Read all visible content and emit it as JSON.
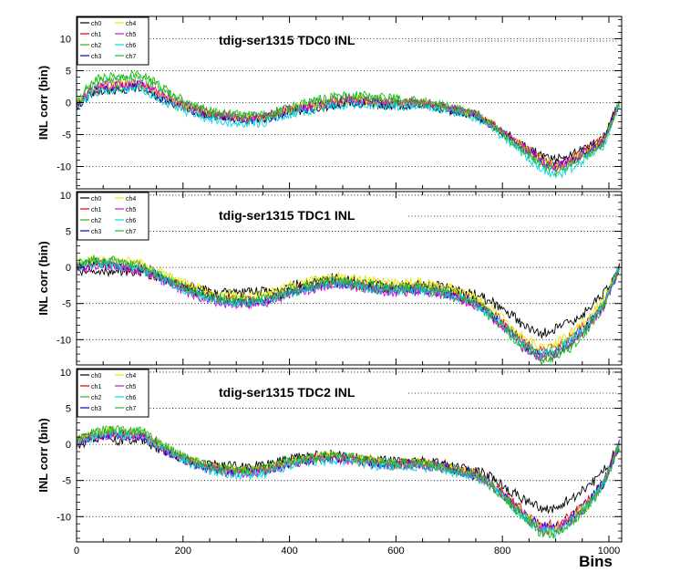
{
  "chart_data": [
    {
      "type": "line",
      "title": "tdig-ser1315 TDC0 INL",
      "ylabel": "INL corr (bin)",
      "xlabel": "",
      "xlim": [
        0,
        1024
      ],
      "ylim": [
        -13.5,
        13.5
      ],
      "x_ticks": [
        0,
        200,
        400,
        600,
        800,
        1000
      ],
      "y_ticks": [
        -10,
        -5,
        0,
        5,
        10
      ],
      "grid": "horizontal dotted",
      "legend": "top-left",
      "x": [
        0,
        30,
        60,
        90,
        120,
        160,
        200,
        240,
        280,
        320,
        360,
        400,
        440,
        480,
        520,
        560,
        600,
        640,
        680,
        720,
        750,
        780,
        810,
        840,
        870,
        900,
        930,
        960,
        990,
        1020
      ],
      "series": [
        {
          "name": "ch0",
          "color": "#000000",
          "values": [
            -0.5,
            1.5,
            2.0,
            2.0,
            2.5,
            0.5,
            -0.8,
            -1.8,
            -2.2,
            -2.6,
            -2.3,
            -1.5,
            -1.0,
            -0.5,
            0.0,
            -0.3,
            -0.5,
            -0.3,
            -0.8,
            -1.5,
            -2.0,
            -3.5,
            -5.0,
            -6.5,
            -8.0,
            -9.0,
            -8.0,
            -7.0,
            -5.5,
            0.0
          ]
        },
        {
          "name": "ch1",
          "color": "#e00000",
          "values": [
            -0.3,
            2.0,
            2.5,
            2.6,
            3.0,
            1.0,
            -0.5,
            -1.6,
            -2.1,
            -2.5,
            -2.2,
            -1.2,
            -0.6,
            0.0,
            0.3,
            0.1,
            -0.2,
            0.0,
            -0.5,
            -1.3,
            -1.9,
            -3.3,
            -5.0,
            -6.8,
            -8.6,
            -9.8,
            -8.8,
            -7.3,
            -5.8,
            0.0
          ]
        },
        {
          "name": "ch2",
          "color": "#10c010",
          "values": [
            0.0,
            3.5,
            4.0,
            4.2,
            4.5,
            2.5,
            0.3,
            -1.0,
            -1.7,
            -2.0,
            -1.9,
            -0.7,
            0.2,
            0.8,
            1.2,
            0.9,
            0.6,
            0.4,
            -0.3,
            -1.0,
            -1.7,
            -3.3,
            -5.4,
            -7.4,
            -9.3,
            -10.4,
            -9.3,
            -7.8,
            -6.2,
            0.0
          ]
        },
        {
          "name": "ch3",
          "color": "#0000d0",
          "values": [
            -0.5,
            1.8,
            2.4,
            2.5,
            2.8,
            0.8,
            -0.7,
            -1.8,
            -2.4,
            -2.8,
            -2.5,
            -1.4,
            -0.8,
            -0.2,
            0.2,
            0.0,
            -0.3,
            -0.1,
            -0.6,
            -1.4,
            -2.1,
            -3.5,
            -5.3,
            -7.0,
            -8.8,
            -10.0,
            -9.0,
            -7.5,
            -6.0,
            0.0
          ]
        },
        {
          "name": "ch4",
          "color": "#e8e800",
          "values": [
            -0.4,
            2.2,
            2.7,
            2.8,
            3.1,
            1.2,
            -0.4,
            -1.5,
            -2.1,
            -2.5,
            -2.2,
            -1.1,
            -0.5,
            0.1,
            0.4,
            0.2,
            -0.1,
            0.1,
            -0.4,
            -1.2,
            -1.9,
            -3.4,
            -5.2,
            -7.0,
            -8.8,
            -10.0,
            -9.0,
            -7.5,
            -6.0,
            0.0
          ]
        },
        {
          "name": "ch5",
          "color": "#e000e0",
          "values": [
            -0.4,
            2.3,
            2.8,
            2.9,
            3.2,
            1.3,
            -0.3,
            -1.5,
            -2.1,
            -2.4,
            -2.1,
            -1.0,
            -0.4,
            0.2,
            0.5,
            0.3,
            0.0,
            0.2,
            -0.3,
            -1.1,
            -1.8,
            -3.4,
            -5.3,
            -7.1,
            -9.0,
            -10.2,
            -9.1,
            -7.6,
            -6.1,
            0.0
          ]
        },
        {
          "name": "ch6",
          "color": "#00d8e0",
          "values": [
            -0.8,
            1.5,
            2.0,
            2.1,
            2.4,
            0.3,
            -1.2,
            -2.4,
            -3.0,
            -3.4,
            -3.0,
            -1.8,
            -1.2,
            -0.6,
            -0.2,
            -0.4,
            -0.6,
            -0.4,
            -0.9,
            -1.7,
            -2.4,
            -3.9,
            -6.0,
            -8.0,
            -10.2,
            -11.5,
            -10.3,
            -8.5,
            -6.8,
            0.0
          ]
        },
        {
          "name": "ch7",
          "color": "#30b030",
          "values": [
            -0.2,
            3.0,
            3.6,
            3.8,
            4.0,
            2.0,
            0.0,
            -1.2,
            -1.9,
            -2.2,
            -2.0,
            -0.8,
            0.0,
            0.6,
            1.0,
            0.7,
            0.4,
            0.3,
            -0.3,
            -1.1,
            -1.8,
            -3.4,
            -5.5,
            -7.5,
            -9.5,
            -10.8,
            -9.6,
            -8.0,
            -6.4,
            0.0
          ]
        }
      ]
    },
    {
      "type": "line",
      "title": "tdig-ser1315 TDC1 INL",
      "ylabel": "INL corr (bin)",
      "xlabel": "",
      "xlim": [
        0,
        1024
      ],
      "ylim": [
        -13.5,
        10.5
      ],
      "x_ticks": [
        0,
        200,
        400,
        600,
        800,
        1000
      ],
      "y_ticks": [
        -10,
        -5,
        0,
        5,
        10
      ],
      "grid": "horizontal dotted",
      "legend": "top-left",
      "x": [
        0,
        30,
        60,
        90,
        120,
        160,
        200,
        240,
        280,
        320,
        360,
        400,
        440,
        480,
        520,
        560,
        600,
        640,
        680,
        720,
        750,
        780,
        810,
        840,
        870,
        900,
        930,
        960,
        990,
        1020
      ],
      "series": [
        {
          "name": "ch0",
          "color": "#000000",
          "values": [
            -0.5,
            -0.3,
            -0.8,
            -0.5,
            -0.5,
            -1.5,
            -2.5,
            -3.2,
            -3.6,
            -3.5,
            -3.3,
            -2.6,
            -2.0,
            -1.5,
            -1.8,
            -2.3,
            -2.5,
            -2.4,
            -2.6,
            -3.3,
            -3.8,
            -4.8,
            -6.2,
            -8.0,
            -9.3,
            -8.5,
            -7.5,
            -6.0,
            -3.5,
            0.0
          ]
        },
        {
          "name": "ch1",
          "color": "#e00000",
          "values": [
            0.0,
            0.5,
            0.5,
            0.0,
            -0.2,
            -1.5,
            -2.8,
            -3.8,
            -4.5,
            -4.6,
            -4.3,
            -3.2,
            -2.6,
            -2.0,
            -2.2,
            -2.8,
            -3.0,
            -2.9,
            -3.2,
            -4.0,
            -4.8,
            -6.3,
            -8.2,
            -10.3,
            -11.6,
            -11.0,
            -9.5,
            -7.5,
            -5.0,
            0.0
          ]
        },
        {
          "name": "ch2",
          "color": "#10c010",
          "values": [
            0.2,
            0.8,
            0.8,
            0.4,
            0.0,
            -1.3,
            -2.8,
            -4.0,
            -4.8,
            -4.9,
            -4.6,
            -3.5,
            -2.8,
            -2.2,
            -2.5,
            -3.0,
            -3.2,
            -3.1,
            -3.5,
            -4.3,
            -5.2,
            -7.0,
            -9.0,
            -11.3,
            -12.8,
            -12.5,
            -11.0,
            -8.5,
            -5.5,
            0.0
          ]
        },
        {
          "name": "ch3",
          "color": "#0000d0",
          "values": [
            0.1,
            0.6,
            0.6,
            0.2,
            -0.1,
            -1.4,
            -2.8,
            -3.9,
            -4.6,
            -4.7,
            -4.4,
            -3.3,
            -2.7,
            -2.1,
            -2.3,
            -2.9,
            -3.1,
            -3.0,
            -3.3,
            -4.1,
            -5.0,
            -6.6,
            -8.6,
            -10.8,
            -12.2,
            -11.8,
            -10.2,
            -8.0,
            -5.2,
            0.0
          ]
        },
        {
          "name": "ch4",
          "color": "#e8e800",
          "values": [
            0.5,
            1.2,
            1.3,
            0.8,
            0.5,
            -0.8,
            -2.2,
            -3.2,
            -3.8,
            -3.9,
            -3.6,
            -2.5,
            -1.8,
            -1.2,
            -1.5,
            -2.0,
            -2.2,
            -2.1,
            -2.5,
            -3.3,
            -4.2,
            -5.8,
            -7.7,
            -9.8,
            -11.0,
            -10.5,
            -9.0,
            -7.0,
            -4.5,
            0.0
          ]
        },
        {
          "name": "ch5",
          "color": "#e000e0",
          "values": [
            -0.2,
            0.2,
            0.2,
            -0.2,
            -0.5,
            -1.8,
            -3.2,
            -4.3,
            -5.0,
            -5.1,
            -4.8,
            -3.7,
            -3.0,
            -2.4,
            -2.6,
            -3.2,
            -3.4,
            -3.3,
            -3.6,
            -4.4,
            -5.3,
            -6.9,
            -8.8,
            -11.0,
            -12.4,
            -12.0,
            -10.5,
            -8.2,
            -5.4,
            0.0
          ]
        },
        {
          "name": "ch6",
          "color": "#00d8e0",
          "values": [
            0.0,
            0.4,
            0.4,
            0.0,
            -0.3,
            -1.6,
            -3.0,
            -4.1,
            -4.8,
            -4.9,
            -4.6,
            -3.5,
            -2.8,
            -2.2,
            -2.4,
            -3.0,
            -3.2,
            -3.1,
            -3.4,
            -4.2,
            -5.1,
            -6.7,
            -8.6,
            -10.6,
            -11.9,
            -11.4,
            -9.9,
            -7.8,
            -5.1,
            0.0
          ]
        },
        {
          "name": "ch7",
          "color": "#30b030",
          "values": [
            0.3,
            0.9,
            1.0,
            0.5,
            0.2,
            -1.1,
            -2.6,
            -3.7,
            -4.4,
            -4.5,
            -4.2,
            -3.1,
            -2.4,
            -1.8,
            -2.1,
            -2.6,
            -2.8,
            -2.7,
            -3.1,
            -3.9,
            -4.8,
            -6.5,
            -8.5,
            -10.8,
            -12.3,
            -12.0,
            -10.5,
            -8.1,
            -5.2,
            0.0
          ]
        }
      ]
    },
    {
      "type": "line",
      "title": "tdig-ser1315 TDC2 INL",
      "ylabel": "INL corr (bin)",
      "xlabel": "Bins",
      "xlim": [
        0,
        1024
      ],
      "ylim": [
        -13.5,
        10.5
      ],
      "x_ticks": [
        0,
        200,
        400,
        600,
        800,
        1000
      ],
      "y_ticks": [
        -10,
        -5,
        0,
        5,
        10
      ],
      "grid": "horizontal dotted",
      "legend": "top-left",
      "x": [
        0,
        30,
        60,
        90,
        120,
        160,
        200,
        240,
        280,
        320,
        360,
        400,
        440,
        480,
        520,
        560,
        600,
        640,
        680,
        720,
        750,
        780,
        810,
        840,
        870,
        900,
        930,
        960,
        990,
        1020
      ],
      "series": [
        {
          "name": "ch0",
          "color": "#000000",
          "values": [
            0.0,
            0.6,
            0.8,
            0.5,
            0.8,
            -0.8,
            -2.0,
            -2.7,
            -3.0,
            -3.1,
            -2.8,
            -2.0,
            -1.6,
            -1.4,
            -1.8,
            -2.2,
            -2.4,
            -2.3,
            -2.6,
            -3.2,
            -3.6,
            -4.6,
            -6.2,
            -7.6,
            -8.8,
            -8.8,
            -7.5,
            -6.0,
            -3.8,
            0.0
          ]
        },
        {
          "name": "ch1",
          "color": "#e00000",
          "values": [
            0.4,
            1.2,
            1.6,
            1.3,
            1.5,
            -0.4,
            -2.0,
            -3.0,
            -3.5,
            -3.7,
            -3.4,
            -2.5,
            -2.0,
            -1.7,
            -2.0,
            -2.5,
            -2.7,
            -2.6,
            -2.9,
            -3.6,
            -4.1,
            -5.4,
            -7.3,
            -9.3,
            -11.0,
            -11.3,
            -9.8,
            -7.9,
            -5.2,
            0.0
          ]
        },
        {
          "name": "ch2",
          "color": "#10c010",
          "values": [
            0.6,
            1.5,
            1.9,
            1.6,
            1.8,
            -0.2,
            -1.8,
            -2.9,
            -3.5,
            -3.7,
            -3.3,
            -2.4,
            -1.9,
            -1.6,
            -1.9,
            -2.4,
            -2.7,
            -2.6,
            -3.0,
            -3.8,
            -4.3,
            -5.8,
            -7.9,
            -10.1,
            -12.0,
            -12.3,
            -10.7,
            -8.6,
            -5.6,
            0.0
          ]
        },
        {
          "name": "ch3",
          "color": "#0000d0",
          "values": [
            0.3,
            1.0,
            1.4,
            1.1,
            1.3,
            -0.6,
            -2.2,
            -3.1,
            -3.7,
            -3.9,
            -3.5,
            -2.6,
            -2.1,
            -1.8,
            -2.1,
            -2.6,
            -2.8,
            -2.7,
            -3.0,
            -3.7,
            -4.2,
            -5.5,
            -7.5,
            -9.6,
            -11.3,
            -11.6,
            -10.1,
            -8.1,
            -5.3,
            0.0
          ]
        },
        {
          "name": "ch4",
          "color": "#e8e800",
          "values": [
            0.5,
            1.3,
            1.7,
            1.4,
            1.6,
            -0.3,
            -1.9,
            -2.9,
            -3.5,
            -3.7,
            -3.3,
            -2.4,
            -1.9,
            -1.6,
            -1.9,
            -2.4,
            -2.7,
            -2.6,
            -2.9,
            -3.7,
            -4.2,
            -5.6,
            -7.6,
            -9.7,
            -11.5,
            -11.8,
            -10.3,
            -8.3,
            -5.4,
            0.0
          ]
        },
        {
          "name": "ch5",
          "color": "#e000e0",
          "values": [
            0.2,
            1.0,
            1.4,
            1.1,
            1.3,
            -0.6,
            -2.2,
            -3.2,
            -3.8,
            -4.0,
            -3.6,
            -2.7,
            -2.2,
            -1.9,
            -2.2,
            -2.7,
            -2.9,
            -2.8,
            -3.1,
            -3.8,
            -4.3,
            -5.7,
            -7.7,
            -9.8,
            -11.6,
            -12.0,
            -10.4,
            -8.4,
            -5.5,
            0.0
          ]
        },
        {
          "name": "ch6",
          "color": "#00d8e0",
          "values": [
            0.2,
            1.1,
            1.5,
            1.2,
            1.4,
            -0.6,
            -2.3,
            -3.4,
            -4.0,
            -4.3,
            -3.9,
            -2.9,
            -2.4,
            -2.1,
            -2.4,
            -2.9,
            -3.1,
            -3.0,
            -3.3,
            -4.0,
            -4.5,
            -5.9,
            -7.9,
            -10.0,
            -11.8,
            -12.2,
            -10.6,
            -8.5,
            -5.6,
            0.0
          ]
        },
        {
          "name": "ch7",
          "color": "#30b030",
          "values": [
            0.7,
            1.6,
            2.1,
            1.8,
            2.0,
            0.0,
            -1.7,
            -2.8,
            -3.4,
            -3.6,
            -3.2,
            -2.3,
            -1.8,
            -1.5,
            -1.8,
            -2.3,
            -2.6,
            -2.5,
            -2.9,
            -3.7,
            -4.2,
            -5.7,
            -7.8,
            -10.1,
            -12.1,
            -12.5,
            -10.9,
            -8.7,
            -5.7,
            0.0
          ]
        }
      ]
    }
  ]
}
